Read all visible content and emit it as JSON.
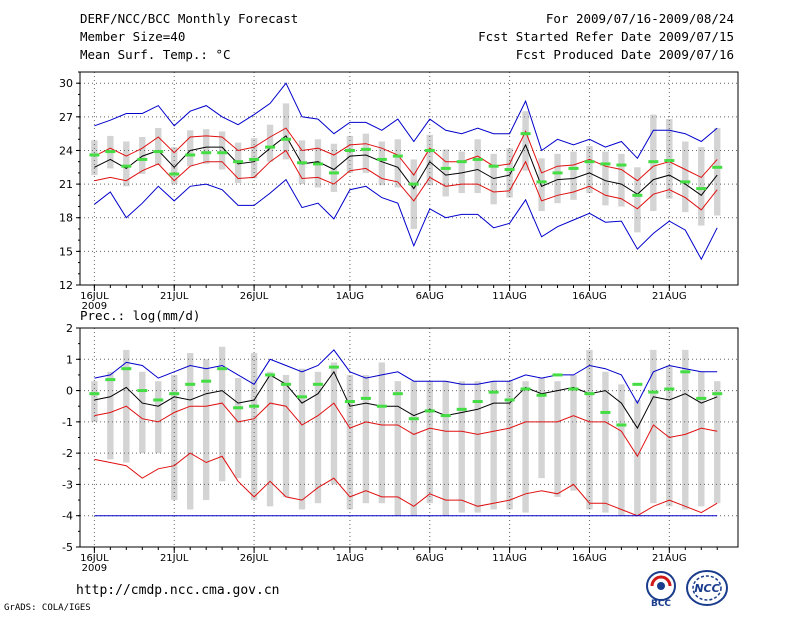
{
  "header": {
    "title": "DERF/NCC/BCC Monthly Forecast",
    "member_size": "Member Size=40",
    "variable1": "Mean Surf. Temp.: °C",
    "period": "For 2009/07/16-2009/08/24",
    "start_date": "Fcst Started Refer Date 2009/07/15",
    "produced_date": "Fcst Produced Date 2009/07/16"
  },
  "footer": {
    "url": "http://cmdp.ncc.cma.gov.cn",
    "grads": "GrADS: COLA/IGES"
  },
  "logos": {
    "bcc": "BCC",
    "ncc": "NCC"
  },
  "chart_data": [
    {
      "type": "line",
      "title": "Mean Surf. Temp.: °C",
      "ylim": [
        12,
        31
      ],
      "yticks": [
        "12",
        "15",
        "18",
        "21",
        "24",
        "27",
        "30"
      ],
      "xticks": [
        "16JUL",
        "21JUL",
        "26JUL",
        "1AUG",
        "6AUG",
        "11AUG",
        "16AUG",
        "21AUG"
      ],
      "xtick_year": "2009",
      "x_days": 40,
      "series": [
        {
          "name": "ensemble mean",
          "color": "#000000",
          "values": [
            22.5,
            23.2,
            22.4,
            23.5,
            24.0,
            22.5,
            24.0,
            24.3,
            24.3,
            22.8,
            23.0,
            24.2,
            25.3,
            22.8,
            23.0,
            22.3,
            23.5,
            23.6,
            23.0,
            22.5,
            20.6,
            23.0,
            21.8,
            22.0,
            22.3,
            21.5,
            21.8,
            24.5,
            20.8,
            21.4,
            21.5,
            22.0,
            21.3,
            21.0,
            20.1,
            21.4,
            21.8,
            21.0,
            20.0,
            21.8
          ]
        },
        {
          "name": "upper red",
          "color": "#e01010",
          "values": [
            23.5,
            24.2,
            23.5,
            24.2,
            25.2,
            23.8,
            25.2,
            25.3,
            25.2,
            24.0,
            24.3,
            25.2,
            26.0,
            24.0,
            24.2,
            23.6,
            24.5,
            24.6,
            24.2,
            23.6,
            21.8,
            24.2,
            23.0,
            23.0,
            23.5,
            22.6,
            22.8,
            25.7,
            22.0,
            22.6,
            22.7,
            23.2,
            22.6,
            22.3,
            21.3,
            22.6,
            23.0,
            22.3,
            21.6,
            23.2
          ]
        },
        {
          "name": "lower red",
          "color": "#e01010",
          "values": [
            21.3,
            21.6,
            21.3,
            22.2,
            22.8,
            21.3,
            22.6,
            23.0,
            23.0,
            21.5,
            21.6,
            23.0,
            24.0,
            21.5,
            21.6,
            21.0,
            22.2,
            22.4,
            21.5,
            21.2,
            19.5,
            21.6,
            20.8,
            21.0,
            21.0,
            20.3,
            20.4,
            23.0,
            19.5,
            20.0,
            20.3,
            20.8,
            20.0,
            19.7,
            18.8,
            20.1,
            20.5,
            19.8,
            18.7,
            20.5
          ]
        },
        {
          "name": "upper blue",
          "color": "#0000cc",
          "values": [
            26.2,
            26.7,
            27.3,
            27.3,
            28.0,
            26.2,
            27.5,
            28.0,
            27.0,
            26.3,
            27.2,
            28.2,
            30.0,
            27.0,
            26.8,
            25.5,
            26.5,
            26.5,
            25.8,
            26.8,
            24.8,
            26.8,
            25.8,
            25.5,
            26.0,
            25.5,
            25.5,
            28.4,
            24.0,
            25.0,
            24.5,
            25.0,
            24.3,
            24.8,
            23.3,
            25.8,
            25.8,
            25.5,
            24.8,
            26.0
          ]
        },
        {
          "name": "lower blue",
          "color": "#0000cc",
          "values": [
            19.2,
            20.3,
            18.0,
            19.3,
            20.8,
            19.5,
            20.8,
            21.0,
            20.5,
            19.1,
            19.1,
            20.2,
            21.4,
            18.9,
            19.3,
            17.9,
            20.5,
            20.8,
            19.8,
            19.3,
            15.5,
            18.8,
            18.0,
            18.3,
            18.3,
            17.1,
            17.5,
            19.6,
            16.3,
            17.2,
            17.8,
            18.4,
            17.6,
            17.7,
            15.2,
            16.6,
            17.7,
            16.9,
            14.3,
            17.1
          ]
        },
        {
          "name": "observed",
          "color": "#44dd44",
          "values": [
            23.6,
            23.9,
            22.6,
            23.2,
            23.9,
            21.9,
            23.6,
            23.8,
            23.8,
            23.0,
            23.2,
            24.3,
            25.0,
            22.9,
            22.8,
            22.0,
            24.0,
            24.1,
            23.2,
            23.5,
            21.0,
            24.0,
            22.4,
            23.0,
            23.2,
            22.6,
            22.3,
            25.5,
            21.2,
            22.0,
            22.4,
            23.0,
            22.8,
            22.7,
            20.0,
            23.0,
            23.1,
            21.2,
            20.6,
            22.5
          ]
        }
      ],
      "box_low": [
        21.8,
        22.4,
        20.8,
        21.9,
        22.7,
        21.0,
        22.6,
        22.8,
        22.3,
        21.1,
        21.5,
        23.0,
        23.2,
        21.0,
        20.7,
        20.3,
        22.0,
        22.0,
        20.9,
        20.7,
        17.0,
        20.9,
        19.9,
        20.2,
        20.2,
        19.2,
        19.8,
        22.2,
        18.6,
        19.3,
        19.6,
        20.2,
        19.1,
        19.0,
        16.7,
        18.6,
        19.7,
        18.5,
        17.3,
        18.2
      ],
      "box_high": [
        24.9,
        25.3,
        24.8,
        25.2,
        26.0,
        24.3,
        25.8,
        25.9,
        25.7,
        24.7,
        25.1,
        26.3,
        28.2,
        24.9,
        25.0,
        24.6,
        25.3,
        25.5,
        24.8,
        25.0,
        23.2,
        25.4,
        24.1,
        23.9,
        25.0,
        23.7,
        24.2,
        27.5,
        23.3,
        23.7,
        23.9,
        24.4,
        23.9,
        23.7,
        22.5,
        27.2,
        26.8,
        24.8,
        24.3,
        26.0
      ]
    },
    {
      "type": "line",
      "title": "Prec.: log(mm/d)",
      "ylim": [
        -5,
        2
      ],
      "yticks": [
        "-5",
        "-4",
        "-3",
        "-2",
        "-1",
        "0",
        "1",
        "2"
      ],
      "xticks": [
        "16JUL",
        "21JUL",
        "26JUL",
        "1AUG",
        "6AUG",
        "11AUG",
        "16AUG",
        "21AUG"
      ],
      "xtick_year": "2009",
      "x_days": 40,
      "series": [
        {
          "name": "ensemble mean",
          "color": "#000000",
          "values": [
            -0.3,
            -0.2,
            0.1,
            -0.4,
            -0.5,
            -0.2,
            -0.3,
            -0.1,
            0.0,
            -0.4,
            -0.3,
            0.5,
            0.2,
            -0.4,
            -0.1,
            0.6,
            -0.5,
            -0.4,
            -0.5,
            -0.5,
            -0.8,
            -0.6,
            -0.8,
            -0.7,
            -0.6,
            -0.4,
            -0.4,
            0.1,
            -0.1,
            0.0,
            0.1,
            -0.1,
            0.0,
            -0.4,
            -1.2,
            -0.2,
            -0.3,
            -0.1,
            -0.4,
            -0.2
          ]
        },
        {
          "name": "upper red",
          "color": "#e01010",
          "values": [
            -0.8,
            -0.7,
            -0.5,
            -0.9,
            -1.0,
            -0.7,
            -0.5,
            -0.5,
            -0.4,
            -1.0,
            -0.9,
            -0.4,
            -0.5,
            -1.1,
            -0.8,
            -0.4,
            -1.2,
            -1.0,
            -1.1,
            -1.1,
            -1.4,
            -1.2,
            -1.3,
            -1.3,
            -1.4,
            -1.3,
            -1.2,
            -1.0,
            -1.0,
            -1.0,
            -0.8,
            -1.0,
            -1.0,
            -1.3,
            -2.1,
            -1.1,
            -1.5,
            -1.4,
            -1.2,
            -1.3
          ]
        },
        {
          "name": "lower red",
          "color": "#e01010",
          "values": [
            -2.2,
            -2.3,
            -2.4,
            -2.8,
            -2.5,
            -2.4,
            -2.0,
            -2.3,
            -2.1,
            -2.9,
            -3.4,
            -2.9,
            -3.4,
            -3.5,
            -3.1,
            -2.8,
            -3.4,
            -3.2,
            -3.4,
            -3.4,
            -3.7,
            -3.3,
            -3.5,
            -3.5,
            -3.7,
            -3.6,
            -3.5,
            -3.3,
            -3.2,
            -3.3,
            -3.0,
            -3.6,
            -3.6,
            -3.8,
            -4.0,
            -3.7,
            -3.5,
            -3.7,
            -3.9,
            -3.6
          ]
        },
        {
          "name": "upper blue",
          "color": "#0000cc",
          "values": [
            0.4,
            0.5,
            0.9,
            0.8,
            0.4,
            0.6,
            0.8,
            0.7,
            0.8,
            0.5,
            0.2,
            1.0,
            0.8,
            0.6,
            0.8,
            1.3,
            0.6,
            0.4,
            0.5,
            0.6,
            0.3,
            0.3,
            0.3,
            0.2,
            0.2,
            0.3,
            0.3,
            0.5,
            0.4,
            0.5,
            0.5,
            0.8,
            0.7,
            0.5,
            -0.4,
            0.6,
            0.8,
            0.7,
            0.6,
            0.6
          ]
        },
        {
          "name": "lower blue",
          "color": "#0000cc",
          "values": [
            -4.0,
            -4.0,
            -4.0,
            -4.0,
            -4.0,
            -4.0,
            -4.0,
            -4.0,
            -4.0,
            -4.0,
            -4.0,
            -4.0,
            -4.0,
            -4.0,
            -4.0,
            -4.0,
            -4.0,
            -4.0,
            -4.0,
            -4.0,
            -4.0,
            -4.0,
            -4.0,
            -4.0,
            -4.0,
            -4.0,
            -4.0,
            -4.0,
            -4.0,
            -4.0,
            -4.0,
            -4.0,
            -4.0,
            -4.0,
            -4.0,
            -4.0,
            -4.0,
            -4.0,
            -4.0,
            -4.0
          ]
        },
        {
          "name": "observed",
          "color": "#44dd44",
          "values": [
            -0.1,
            0.35,
            0.7,
            0.0,
            -0.3,
            -0.1,
            0.2,
            0.3,
            0.7,
            -0.55,
            -0.5,
            0.5,
            0.2,
            -0.2,
            0.2,
            0.75,
            -0.35,
            -0.25,
            -0.5,
            -0.1,
            -0.9,
            -0.65,
            -0.8,
            -0.6,
            -0.35,
            -0.05,
            -0.3,
            0.05,
            -0.15,
            0.5,
            0.05,
            -0.1,
            -0.7,
            -1.1,
            0.2,
            -0.05,
            0.05,
            0.6,
            -0.25,
            -0.1
          ]
        }
      ],
      "box_low": [
        -1.0,
        -2.2,
        -2.3,
        -2.0,
        -2.0,
        -3.5,
        -3.8,
        -3.5,
        -2.9,
        -2.8,
        -3.5,
        -3.7,
        -3.4,
        -3.8,
        -3.6,
        -3.0,
        -3.8,
        -3.6,
        -3.6,
        -4.0,
        -4.0,
        -3.6,
        -4.0,
        -3.9,
        -3.9,
        -3.8,
        -3.8,
        -3.9,
        -2.8,
        -3.4,
        -3.2,
        -3.8,
        -3.9,
        -4.0,
        -4.0,
        -3.6,
        -3.7,
        -3.8,
        -3.7,
        -3.6
      ],
      "box_high": [
        0.3,
        0.6,
        1.3,
        0.6,
        0.3,
        0.5,
        1.2,
        1.0,
        1.4,
        0.4,
        1.2,
        0.6,
        0.5,
        0.7,
        0.6,
        0.9,
        0.5,
        0.5,
        0.9,
        0.3,
        0.3,
        0.3,
        0.3,
        0.3,
        0.3,
        0.3,
        0.3,
        0.3,
        0.4,
        0.3,
        0.5,
        1.3,
        0.6,
        0.2,
        -0.3,
        1.3,
        0.8,
        1.3,
        0.6,
        0.3
      ]
    }
  ]
}
